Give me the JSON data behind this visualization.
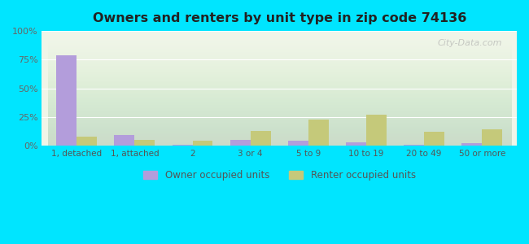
{
  "title": "Owners and renters by unit type in zip code 74136",
  "categories": [
    "1, detached",
    "1, attached",
    "2",
    "3 or 4",
    "5 to 9",
    "10 to 19",
    "20 to 49",
    "50 or more"
  ],
  "owner_values": [
    79,
    9,
    1,
    5,
    4,
    3,
    0.5,
    2
  ],
  "renter_values": [
    8,
    5,
    4,
    13,
    23,
    27,
    12,
    14
  ],
  "owner_color": "#b39ddb",
  "renter_color": "#c5c97a",
  "background_outer": "#00e5ff",
  "background_inner_top": "#f0f5e8",
  "background_inner_bottom": "#d0e8d0",
  "ylabel_color": "#666666",
  "title_color": "#222222",
  "ylim": [
    0,
    100
  ],
  "yticks": [
    0,
    25,
    50,
    75,
    100
  ],
  "ytick_labels": [
    "0%",
    "25%",
    "50%",
    "75%",
    "100%"
  ],
  "legend_owner": "Owner occupied units",
  "legend_renter": "Renter occupied units",
  "watermark": "City-Data.com"
}
